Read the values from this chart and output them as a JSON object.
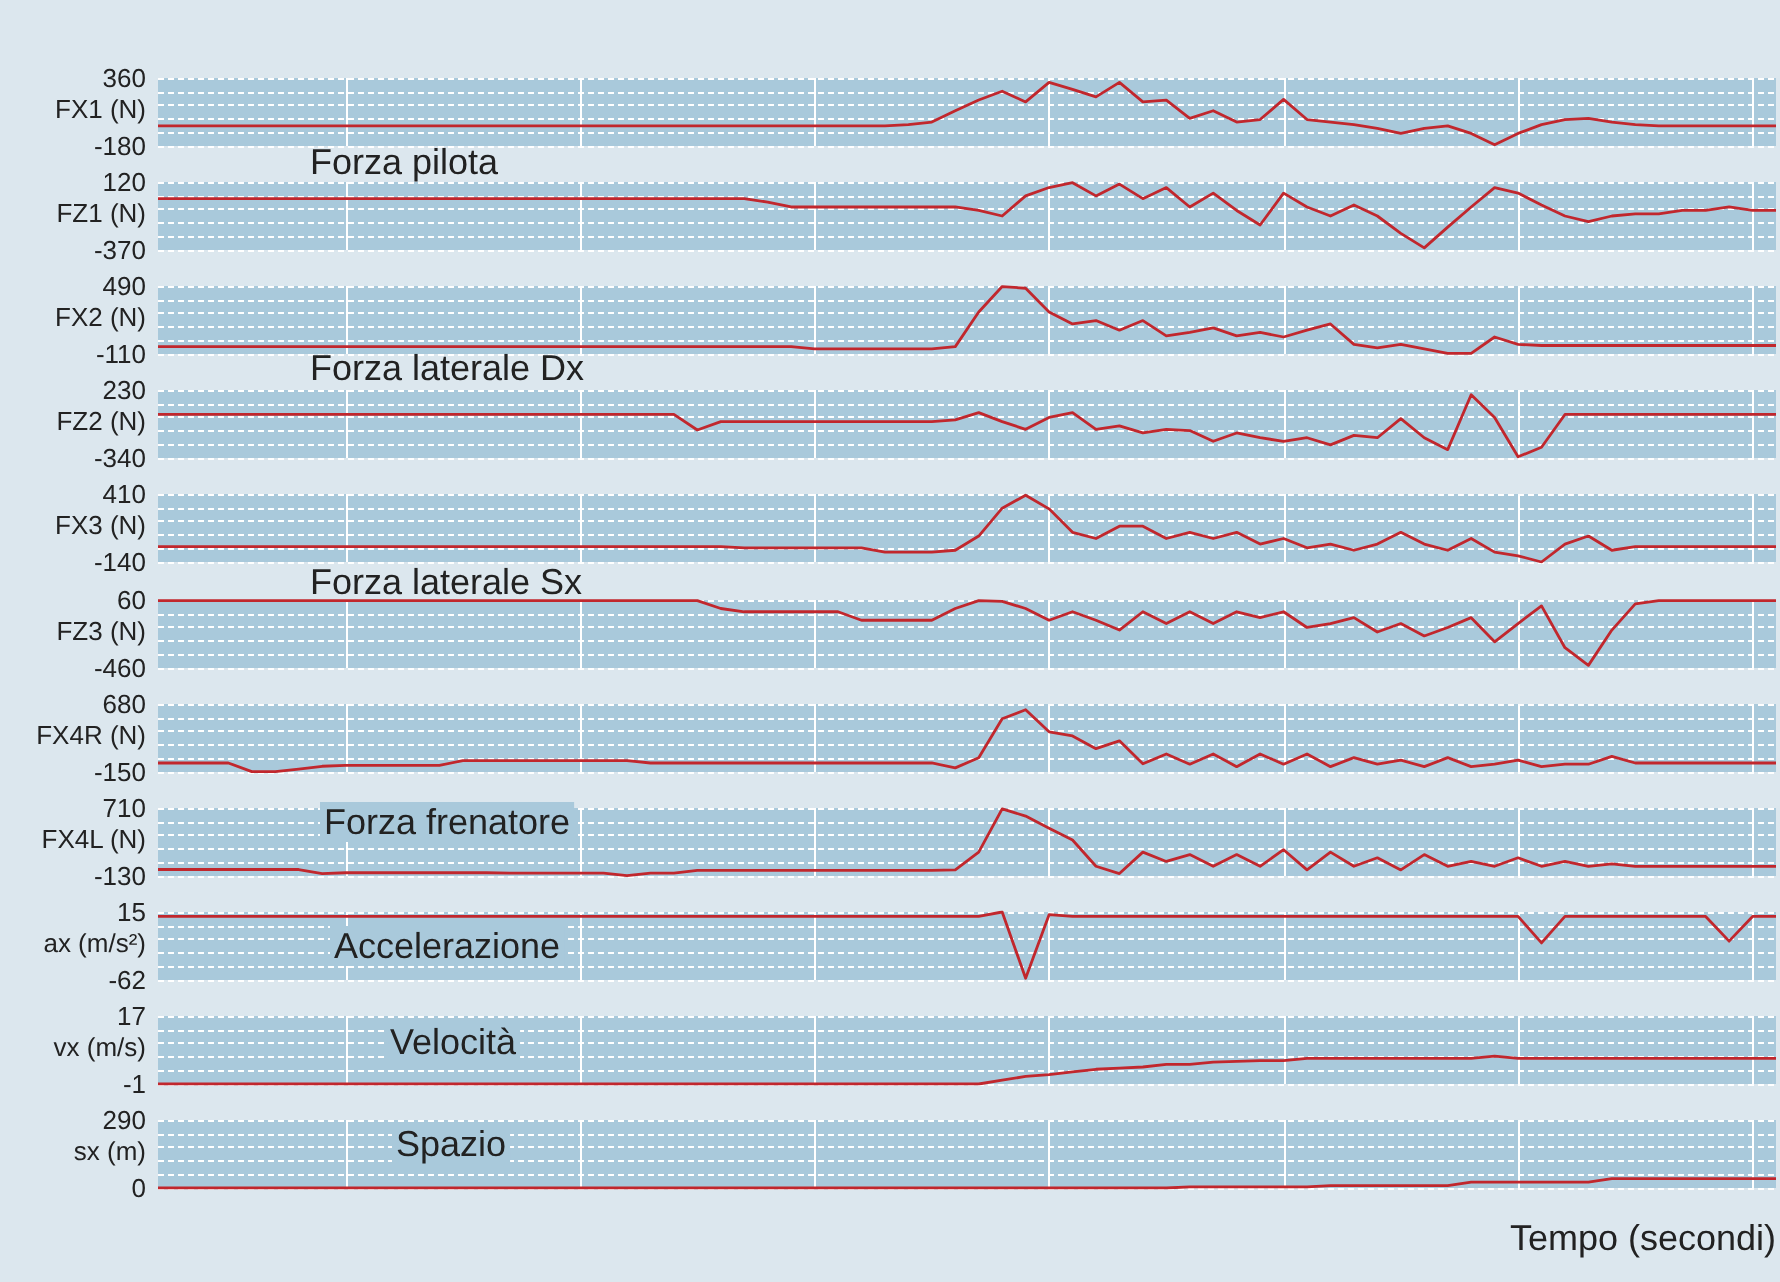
{
  "chart_data": [
    {
      "type": "line",
      "ylabel": "FX1 (N)",
      "ylim": [
        -180,
        360
      ],
      "yticks": [
        -180,
        {
          "value": -72,
          "label": null
        },
        {
          "value": 36,
          "label": null
        },
        {
          "value": 144,
          "label": null
        },
        {
          "value": 252,
          "label": null
        },
        360
      ],
      "grid": true,
      "tick_labels": "y",
      "annotations": [
        "Forza pilota"
      ],
      "categories": [
        null,
        null,
        null,
        null,
        null,
        null,
        null,
        null,
        null,
        null,
        null,
        null,
        null,
        null,
        null,
        null,
        null,
        null,
        null,
        null,
        null,
        null,
        null,
        null,
        null,
        null,
        null,
        null,
        null,
        null,
        null,
        null,
        null,
        null,
        null,
        null,
        null,
        null,
        null,
        null,
        null,
        null,
        null,
        null,
        null,
        null,
        null,
        null,
        null,
        null,
        null,
        null,
        null,
        null,
        null,
        null,
        null,
        null,
        null,
        null,
        null,
        null,
        null,
        null,
        null,
        null,
        null,
        null,
        null,
        null
      ],
      "series": [
        {
          "color": "#c1272d",
          "values": [
            -20,
            -20,
            -20,
            -20,
            -20,
            -20,
            -20,
            -20,
            -20,
            -20,
            -20,
            -20,
            -20,
            -20,
            -20,
            -20,
            -20,
            -20,
            -20,
            -20,
            -20,
            -20,
            -20,
            -20,
            -20,
            -20,
            -20,
            -20,
            -20,
            -20,
            -20,
            -20,
            -10,
            10,
            100,
            185,
            255,
            170,
            325,
            270,
            210,
            325,
            170,
            185,
            40,
            100,
            10,
            30,
            190,
            30,
            10,
            -10,
            -40,
            -80,
            -40,
            -20,
            -80,
            -170,
            -80,
            -10,
            30,
            40,
            10,
            -10,
            -20,
            -20,
            -20,
            -20,
            -20,
            -20
          ]
        }
      ]
    },
    {
      "type": "line",
      "ylabel": "FZ1 (N)",
      "ylim": [
        -370,
        120
      ],
      "yticks": [
        -370,
        {
          "value": -272,
          "label": null
        },
        {
          "value": -174,
          "label": null
        },
        {
          "value": -76,
          "label": null
        },
        {
          "value": 22,
          "label": null
        },
        120
      ],
      "grid": true,
      "tick_labels": "y",
      "categories": [
        null,
        null,
        null,
        null,
        null,
        null,
        null,
        null,
        null,
        null,
        null,
        null,
        null,
        null,
        null,
        null,
        null,
        null,
        null,
        null,
        null,
        null,
        null,
        null,
        null,
        null,
        null,
        null,
        null,
        null,
        null,
        null,
        null,
        null,
        null,
        null,
        null,
        null,
        null,
        null,
        null,
        null,
        null,
        null,
        null,
        null,
        null,
        null,
        null,
        null,
        null,
        null,
        null,
        null,
        null,
        null,
        null,
        null,
        null,
        null,
        null,
        null,
        null,
        null,
        null,
        null,
        null,
        null,
        null,
        null
      ],
      "series": [
        {
          "color": "#c1272d",
          "values": [
            0,
            0,
            0,
            0,
            0,
            0,
            0,
            0,
            0,
            0,
            0,
            0,
            0,
            0,
            0,
            0,
            0,
            0,
            0,
            0,
            0,
            0,
            0,
            0,
            0,
            0,
            -25,
            -60,
            -60,
            -60,
            -60,
            -60,
            -60,
            -60,
            -60,
            -84,
            -125,
            20,
            80,
            115,
            20,
            105,
            0,
            80,
            -60,
            40,
            -85,
            -190,
            40,
            -60,
            -125,
            -45,
            -125,
            -250,
            -355,
            -205,
            -60,
            80,
            40,
            -45,
            -125,
            -165,
            -125,
            -110,
            -110,
            -85,
            -85,
            -60,
            -85,
            -85
          ]
        }
      ]
    },
    {
      "type": "line",
      "ylabel": "FX2 (N)",
      "ylim": [
        -110,
        490
      ],
      "yticks": [
        -110,
        {
          "value": 10,
          "label": null
        },
        {
          "value": 130,
          "label": null
        },
        {
          "value": 250,
          "label": null
        },
        {
          "value": 370,
          "label": null
        },
        490
      ],
      "grid": true,
      "tick_labels": "y",
      "annotations": [
        "Forza laterale Dx"
      ],
      "categories": [
        null,
        null,
        null,
        null,
        null,
        null,
        null,
        null,
        null,
        null,
        null,
        null,
        null,
        null,
        null,
        null,
        null,
        null,
        null,
        null,
        null,
        null,
        null,
        null,
        null,
        null,
        null,
        null,
        null,
        null,
        null,
        null,
        null,
        null,
        null,
        null,
        null,
        null,
        null,
        null,
        null,
        null,
        null,
        null,
        null,
        null,
        null,
        null,
        null,
        null,
        null,
        null,
        null,
        null,
        null,
        null,
        null,
        null,
        null,
        null,
        null,
        null,
        null,
        null,
        null,
        null,
        null,
        null,
        null,
        null
      ],
      "series": [
        {
          "color": "#c1272d",
          "values": [
            -45,
            -45,
            -45,
            -45,
            -45,
            -45,
            -45,
            -45,
            -45,
            -45,
            -45,
            -45,
            -45,
            -45,
            -45,
            -45,
            -45,
            -45,
            -45,
            -45,
            -45,
            -45,
            -45,
            -45,
            -45,
            -45,
            -45,
            -45,
            -65,
            -65,
            -65,
            -65,
            -65,
            -65,
            -45,
            260,
            485,
            470,
            260,
            155,
            185,
            100,
            185,
            50,
            80,
            120,
            50,
            80,
            40,
            100,
            155,
            -25,
            -55,
            -25,
            -65,
            -105,
            -105,
            40,
            -25,
            -35,
            -35,
            -35,
            -35,
            -35,
            -35,
            -35,
            -35,
            -35,
            -35,
            -35
          ]
        }
      ]
    },
    {
      "type": "line",
      "ylabel": "FZ2 (N)",
      "ylim": [
        -340,
        230
      ],
      "yticks": [
        -340,
        {
          "value": -226,
          "label": null
        },
        {
          "value": -112,
          "label": null
        },
        {
          "value": 2,
          "label": null
        },
        {
          "value": 116,
          "label": null
        },
        230
      ],
      "grid": true,
      "tick_labels": "y",
      "categories": [
        null,
        null,
        null,
        null,
        null,
        null,
        null,
        null,
        null,
        null,
        null,
        null,
        null,
        null,
        null,
        null,
        null,
        null,
        null,
        null,
        null,
        null,
        null,
        null,
        null,
        null,
        null,
        null,
        null,
        null,
        null,
        null,
        null,
        null,
        null,
        null,
        null,
        null,
        null,
        null,
        null,
        null,
        null,
        null,
        null,
        null,
        null,
        null,
        null,
        null,
        null,
        null,
        null,
        null,
        null,
        null,
        null,
        null,
        null,
        null,
        null,
        null,
        null,
        null,
        null,
        null,
        null,
        null,
        null,
        null
      ],
      "series": [
        {
          "color": "#c1272d",
          "values": [
            25,
            25,
            25,
            25,
            25,
            25,
            25,
            25,
            25,
            25,
            25,
            25,
            25,
            25,
            25,
            25,
            25,
            25,
            25,
            25,
            25,
            25,
            25,
            -105,
            -35,
            -35,
            -35,
            -35,
            -35,
            -35,
            -35,
            -35,
            -35,
            -35,
            -20,
            40,
            -35,
            -100,
            0,
            40,
            -100,
            -70,
            -130,
            -100,
            -110,
            -200,
            -130,
            -170,
            -200,
            -170,
            -230,
            -150,
            -170,
            -10,
            -170,
            -270,
            190,
            0,
            -330,
            -250,
            25,
            25,
            25,
            25,
            25,
            25,
            25,
            25,
            25,
            25
          ]
        }
      ]
    },
    {
      "type": "line",
      "ylabel": "FX3 (N)",
      "ylim": [
        -140,
        410
      ],
      "yticks": [
        -140,
        {
          "value": -30,
          "label": null
        },
        {
          "value": 80,
          "label": null
        },
        {
          "value": 190,
          "label": null
        },
        {
          "value": 300,
          "label": null
        },
        410
      ],
      "grid": true,
      "tick_labels": "y",
      "annotations": [
        "Forza laterale Sx"
      ],
      "categories": [
        null,
        null,
        null,
        null,
        null,
        null,
        null,
        null,
        null,
        null,
        null,
        null,
        null,
        null,
        null,
        null,
        null,
        null,
        null,
        null,
        null,
        null,
        null,
        null,
        null,
        null,
        null,
        null,
        null,
        null,
        null,
        null,
        null,
        null,
        null,
        null,
        null,
        null,
        null,
        null,
        null,
        null,
        null,
        null,
        null,
        null,
        null,
        null,
        null,
        null,
        null,
        null,
        null,
        null,
        null,
        null,
        null,
        null,
        null,
        null,
        null,
        null,
        null,
        null,
        null,
        null,
        null,
        null,
        null,
        null
      ],
      "series": [
        {
          "color": "#c1272d",
          "values": [
            -15,
            -15,
            -15,
            -15,
            -15,
            -15,
            -15,
            -15,
            -15,
            -15,
            -15,
            -15,
            -15,
            -15,
            -15,
            -15,
            -15,
            -15,
            -15,
            -15,
            -15,
            -15,
            -15,
            -15,
            -15,
            -25,
            -25,
            -25,
            -25,
            -25,
            -25,
            -60,
            -60,
            -60,
            -45,
            70,
            295,
            400,
            290,
            100,
            50,
            150,
            150,
            50,
            100,
            50,
            100,
            5,
            50,
            -25,
            5,
            -45,
            5,
            100,
            5,
            -45,
            50,
            -60,
            -90,
            -140,
            5,
            70,
            -45,
            -15,
            -15,
            -15,
            -15,
            -15,
            -15,
            -15
          ]
        }
      ]
    },
    {
      "type": "line",
      "ylabel": "FZ3 (N)",
      "ylim": [
        -460,
        60
      ],
      "yticks": [
        -460,
        {
          "value": -356,
          "label": null
        },
        {
          "value": -252,
          "label": null
        },
        {
          "value": -148,
          "label": null
        },
        {
          "value": -44,
          "label": null
        },
        60
      ],
      "grid": true,
      "tick_labels": "y",
      "categories": [
        null,
        null,
        null,
        null,
        null,
        null,
        null,
        null,
        null,
        null,
        null,
        null,
        null,
        null,
        null,
        null,
        null,
        null,
        null,
        null,
        null,
        null,
        null,
        null,
        null,
        null,
        null,
        null,
        null,
        null,
        null,
        null,
        null,
        null,
        null,
        null,
        null,
        null,
        null,
        null,
        null,
        null,
        null,
        null,
        null,
        null,
        null,
        null,
        null,
        null,
        null,
        null,
        null,
        null,
        null,
        null,
        null,
        null,
        null,
        null,
        null,
        null,
        null,
        null,
        null,
        null,
        null,
        null,
        null,
        null
      ],
      "series": [
        {
          "color": "#c1272d",
          "values": [
            55,
            55,
            55,
            55,
            55,
            55,
            55,
            55,
            55,
            55,
            55,
            55,
            55,
            55,
            55,
            55,
            55,
            55,
            55,
            55,
            55,
            55,
            55,
            55,
            -5,
            -30,
            -30,
            -30,
            -30,
            -30,
            -95,
            -95,
            -95,
            -95,
            -5,
            55,
            50,
            -5,
            -95,
            -30,
            -95,
            -170,
            -30,
            -120,
            -30,
            -120,
            -30,
            -75,
            -30,
            -150,
            -120,
            -75,
            -185,
            -120,
            -215,
            -150,
            -75,
            -260,
            -120,
            15,
            -305,
            -440,
            -170,
            30,
            55,
            55,
            55,
            55,
            55,
            55
          ]
        }
      ]
    },
    {
      "type": "line",
      "ylabel": "FX4R (N)",
      "ylim": [
        -150,
        680
      ],
      "yticks": [
        -150,
        {
          "value": 16,
          "label": null
        },
        {
          "value": 182,
          "label": null
        },
        {
          "value": 348,
          "label": null
        },
        {
          "value": 514,
          "label": null
        },
        680
      ],
      "grid": true,
      "tick_labels": "y",
      "categories": [
        null,
        null,
        null,
        null,
        null,
        null,
        null,
        null,
        null,
        null,
        null,
        null,
        null,
        null,
        null,
        null,
        null,
        null,
        null,
        null,
        null,
        null,
        null,
        null,
        null,
        null,
        null,
        null,
        null,
        null,
        null,
        null,
        null,
        null,
        null,
        null,
        null,
        null,
        null,
        null,
        null,
        null,
        null,
        null,
        null,
        null,
        null,
        null,
        null,
        null,
        null,
        null,
        null,
        null,
        null,
        null,
        null,
        null,
        null,
        null,
        null,
        null,
        null,
        null,
        null,
        null,
        null,
        null,
        null,
        null
      ],
      "series": [
        {
          "color": "#c1272d",
          "values": [
            -40,
            -40,
            -40,
            -40,
            -145,
            -145,
            -115,
            -80,
            -70,
            -70,
            -70,
            -70,
            -70,
            -10,
            -10,
            -10,
            -10,
            -10,
            -10,
            -10,
            -10,
            -40,
            -40,
            -40,
            -40,
            -40,
            -40,
            -40,
            -40,
            -40,
            -40,
            -40,
            -40,
            -40,
            -100,
            25,
            500,
            610,
            340,
            290,
            135,
            230,
            -50,
            70,
            -55,
            70,
            -85,
            70,
            -55,
            70,
            -85,
            25,
            -55,
            -5,
            -85,
            25,
            -85,
            -55,
            -5,
            -85,
            -55,
            -55,
            40,
            -40,
            -40,
            -40,
            -40,
            -40,
            -40,
            -40
          ]
        }
      ]
    },
    {
      "type": "line",
      "ylabel": "FX4L (N)",
      "ylim": [
        -130,
        710
      ],
      "yticks": [
        -130,
        {
          "value": 38,
          "label": null
        },
        {
          "value": 206,
          "label": null
        },
        {
          "value": 374,
          "label": null
        },
        {
          "value": 542,
          "label": null
        },
        710
      ],
      "grid": true,
      "tick_labels": "y",
      "annotations": [
        "Forza frenatore"
      ],
      "categories": [
        null,
        null,
        null,
        null,
        null,
        null,
        null,
        null,
        null,
        null,
        null,
        null,
        null,
        null,
        null,
        null,
        null,
        null,
        null,
        null,
        null,
        null,
        null,
        null,
        null,
        null,
        null,
        null,
        null,
        null,
        null,
        null,
        null,
        null,
        null,
        null,
        null,
        null,
        null,
        null,
        null,
        null,
        null,
        null,
        null,
        null,
        null,
        null,
        null,
        null,
        null,
        null,
        null,
        null,
        null,
        null,
        null,
        null,
        null,
        null,
        null,
        null,
        null,
        null,
        null,
        null,
        null,
        null,
        null,
        null
      ],
      "series": [
        {
          "color": "#c1272d",
          "values": [
            -50,
            -50,
            -50,
            -50,
            -50,
            -50,
            -50,
            -100,
            -90,
            -90,
            -90,
            -90,
            -90,
            -90,
            -90,
            -95,
            -95,
            -95,
            -95,
            -95,
            -125,
            -95,
            -95,
            -60,
            -60,
            -60,
            -60,
            -60,
            -60,
            -60,
            -60,
            -60,
            -60,
            -60,
            -55,
            165,
            700,
            610,
            460,
            315,
            -10,
            -100,
            165,
            50,
            135,
            -10,
            135,
            -10,
            195,
            -55,
            165,
            -10,
            95,
            -55,
            135,
            -10,
            50,
            -10,
            95,
            -10,
            50,
            -10,
            20,
            -10,
            -10,
            -10,
            -10,
            -10,
            -10,
            -10
          ]
        }
      ]
    },
    {
      "type": "line",
      "ylabel": "ax (m/s²)",
      "ylim": [
        -62,
        15
      ],
      "yticks": [
        -62,
        {
          "value": -46.6,
          "label": null
        },
        {
          "value": -31.2,
          "label": null
        },
        {
          "value": -15.8,
          "label": null
        },
        {
          "value": -0.4,
          "label": null
        },
        15
      ],
      "grid": true,
      "tick_labels": "y",
      "annotations": [
        "Accelerazione"
      ],
      "categories": [
        null,
        null,
        null,
        null,
        null,
        null,
        null,
        null,
        null,
        null,
        null,
        null,
        null,
        null,
        null,
        null,
        null,
        null,
        null,
        null,
        null,
        null,
        null,
        null,
        null,
        null,
        null,
        null,
        null,
        null,
        null,
        null,
        null,
        null,
        null,
        null,
        null,
        null,
        null,
        null,
        null,
        null,
        null,
        null,
        null,
        null,
        null,
        null,
        null,
        null,
        null,
        null,
        null,
        null,
        null,
        null,
        null,
        null,
        null,
        null,
        null,
        null,
        null,
        null,
        null,
        null,
        null,
        null,
        null,
        null
      ],
      "series": [
        {
          "color": "#c1272d",
          "values": [
            10,
            10,
            10,
            10,
            10,
            10,
            10,
            10,
            10,
            10,
            10,
            10,
            10,
            10,
            10,
            10,
            10,
            10,
            10,
            10,
            10,
            10,
            10,
            10,
            10,
            10,
            10,
            10,
            10,
            10,
            10,
            10,
            10,
            10,
            10,
            10,
            15,
            -60,
            12,
            10,
            10,
            10,
            10,
            10,
            10,
            10,
            10,
            10,
            10,
            10,
            10,
            10,
            10,
            10,
            10,
            10,
            10,
            10,
            10,
            -20,
            10,
            10,
            10,
            10,
            10,
            10,
            10,
            -18,
            10,
            10
          ]
        }
      ]
    },
    {
      "type": "line",
      "ylabel": "vx (m/s)",
      "ylim": [
        -1,
        17
      ],
      "yticks": [
        -1,
        {
          "value": 2.6,
          "label": null
        },
        {
          "value": 6.2,
          "label": null
        },
        {
          "value": 9.8,
          "label": null
        },
        {
          "value": 13.4,
          "label": null
        },
        17
      ],
      "grid": true,
      "tick_labels": "y",
      "annotations": [
        "Velocità"
      ],
      "categories": [
        null,
        null,
        null,
        null,
        null,
        null,
        null,
        null,
        null,
        null,
        null,
        null,
        null,
        null,
        null,
        null,
        null,
        null,
        null,
        null,
        null,
        null,
        null,
        null,
        null,
        null,
        null,
        null,
        null,
        null,
        null,
        null,
        null,
        null,
        null,
        null,
        null,
        null,
        null,
        null,
        null,
        null,
        null,
        null,
        null,
        null,
        null,
        null,
        null,
        null,
        null,
        null,
        null,
        null,
        null,
        null,
        null,
        null,
        null,
        null,
        null,
        null,
        null,
        null,
        null,
        null,
        null,
        null,
        null,
        null
      ],
      "series": [
        {
          "color": "#c1272d",
          "values": [
            -1,
            -1,
            -1,
            -1,
            -1,
            -1,
            -1,
            -1,
            -1,
            -1,
            -1,
            -1,
            -1,
            -1,
            -1,
            -1,
            -1,
            -1,
            -1,
            -1,
            -1,
            -1,
            -1,
            -1,
            -1,
            -1,
            -1,
            -1,
            -1,
            -1,
            -1,
            -1,
            -1,
            -1,
            -1,
            -1,
            0,
            1,
            1.5,
            2.2,
            2.9,
            3.2,
            3.5,
            4.2,
            4.2,
            4.8,
            5,
            5.2,
            5.2,
            5.8,
            5.8,
            5.8,
            5.8,
            5.8,
            5.8,
            5.8,
            5.8,
            6.4,
            5.8,
            5.8,
            5.8,
            5.8,
            5.8,
            5.8,
            5.8,
            5.8,
            5.8,
            5.8,
            5.8,
            5.8
          ]
        }
      ]
    },
    {
      "type": "line",
      "ylabel": "sx (m)",
      "xlabel": "Tempo (secondi)",
      "ylim": [
        0,
        290
      ],
      "yticks": [
        0,
        {
          "value": 58,
          "label": null
        },
        {
          "value": 116,
          "label": null
        },
        {
          "value": 174,
          "label": null
        },
        {
          "value": 232,
          "label": null
        },
        290
      ],
      "grid": true,
      "tick_labels": "y",
      "annotations": [
        "Spazio"
      ],
      "categories": [
        null,
        null,
        null,
        null,
        null,
        null,
        null,
        null,
        null,
        null,
        null,
        null,
        null,
        null,
        null,
        null,
        null,
        null,
        null,
        null,
        null,
        null,
        null,
        null,
        null,
        null,
        null,
        null,
        null,
        null,
        null,
        null,
        null,
        null,
        null,
        null,
        null,
        null,
        null,
        null,
        null,
        null,
        null,
        null,
        null,
        null,
        null,
        null,
        null,
        null,
        null,
        null,
        null,
        null,
        null,
        null,
        null,
        null,
        null,
        null,
        null,
        null,
        null,
        null,
        null,
        null,
        null,
        null,
        null,
        null
      ],
      "series": [
        {
          "color": "#c1272d",
          "values": [
            0,
            0,
            0,
            0,
            0,
            0,
            0,
            0,
            0,
            0,
            0,
            0,
            0,
            0,
            0,
            0,
            0,
            0,
            0,
            0,
            0,
            0,
            0,
            0,
            0,
            0,
            0,
            0,
            0,
            0,
            0,
            0,
            0,
            0,
            0,
            0,
            0,
            0,
            0,
            0,
            0,
            0,
            0,
            0,
            5,
            5,
            5,
            5,
            5,
            5,
            10,
            10,
            10,
            10,
            10,
            10,
            25,
            25,
            25,
            25,
            25,
            25,
            40,
            40,
            40,
            40,
            40,
            40,
            40,
            40
          ]
        }
      ]
    }
  ]
}
